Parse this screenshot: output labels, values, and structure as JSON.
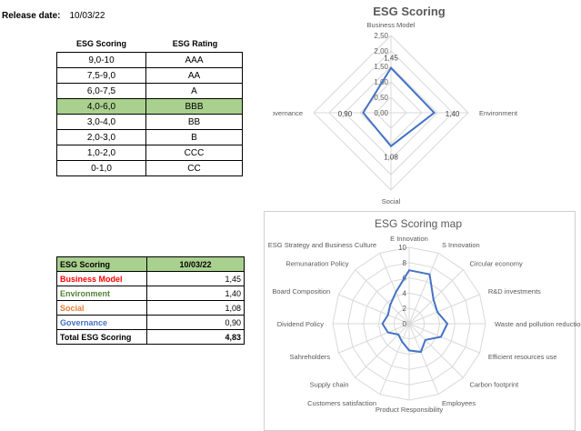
{
  "release": {
    "label": "Release date:",
    "date": "10/03/22"
  },
  "rating_table": {
    "headers": [
      "ESG Scoring",
      "ESG Rating"
    ],
    "rows": [
      [
        "9,0-10",
        "AAA"
      ],
      [
        "7,5-9,0",
        "AA"
      ],
      [
        "6,0-7,5",
        "A"
      ],
      [
        "4,0-6,0",
        "BBB"
      ],
      [
        "3,0-4,0",
        "BB"
      ],
      [
        "2,0-3,0",
        "B"
      ],
      [
        "1,0-2,0",
        "CCC"
      ],
      [
        "0-1,0",
        "CC"
      ]
    ],
    "highlight_color": "#a9d08e"
  },
  "summary_table": {
    "headers": [
      "ESG Scoring",
      "10/03/22"
    ],
    "rows": [
      {
        "label": "Business Model",
        "value": "1,45",
        "color": "#ff0000"
      },
      {
        "label": "Environment",
        "value": "1,40",
        "color": "#548235"
      },
      {
        "label": "Social",
        "value": "1,08",
        "color": "#ed7d31"
      },
      {
        "label": "Governance",
        "value": "0,90",
        "color": "#4472c4"
      },
      {
        "label": "Total ESG Scoring",
        "value": "4,83",
        "color": "#000000"
      }
    ]
  },
  "chart_data": [
    {
      "type": "radar",
      "title": "ESG Scoring",
      "categories": [
        "Business Model",
        "Environment",
        "Social",
        "Governance"
      ],
      "values": [
        1.45,
        1.4,
        1.08,
        0.9
      ],
      "value_labels": [
        "1,45",
        "1,40",
        "1,08",
        "0,90"
      ],
      "ticks": [
        "0,00",
        "0,50",
        "1,00",
        "1,50",
        "2,00",
        "2,50"
      ],
      "rlim": [
        0,
        2.5
      ],
      "line_color": "#4472c4"
    },
    {
      "type": "radar",
      "title": "ESG Scoring map",
      "categories": [
        "E Innovation",
        "S Innovation",
        "Circular economy",
        "R&D investments",
        "Waste and pollution reduction",
        "Efficient resources use",
        "Carbon footprint",
        "Employees",
        "Product Responsibility",
        "Customers satisfaction",
        "Supply chain",
        "Sahreholders",
        "Dividend Policy",
        "Board Composition",
        "Remunaration Policy",
        "ESG Strategy and Business Culture"
      ],
      "values": [
        7,
        7,
        4.5,
        4,
        5,
        4.5,
        3,
        4,
        3.5,
        2.5,
        2,
        3,
        3.5,
        3,
        3.5,
        4.5
      ],
      "ticks": [
        "0",
        "2",
        "4",
        "6",
        "8",
        "10"
      ],
      "rlim": [
        0,
        10
      ],
      "line_color": "#4472c4"
    }
  ]
}
